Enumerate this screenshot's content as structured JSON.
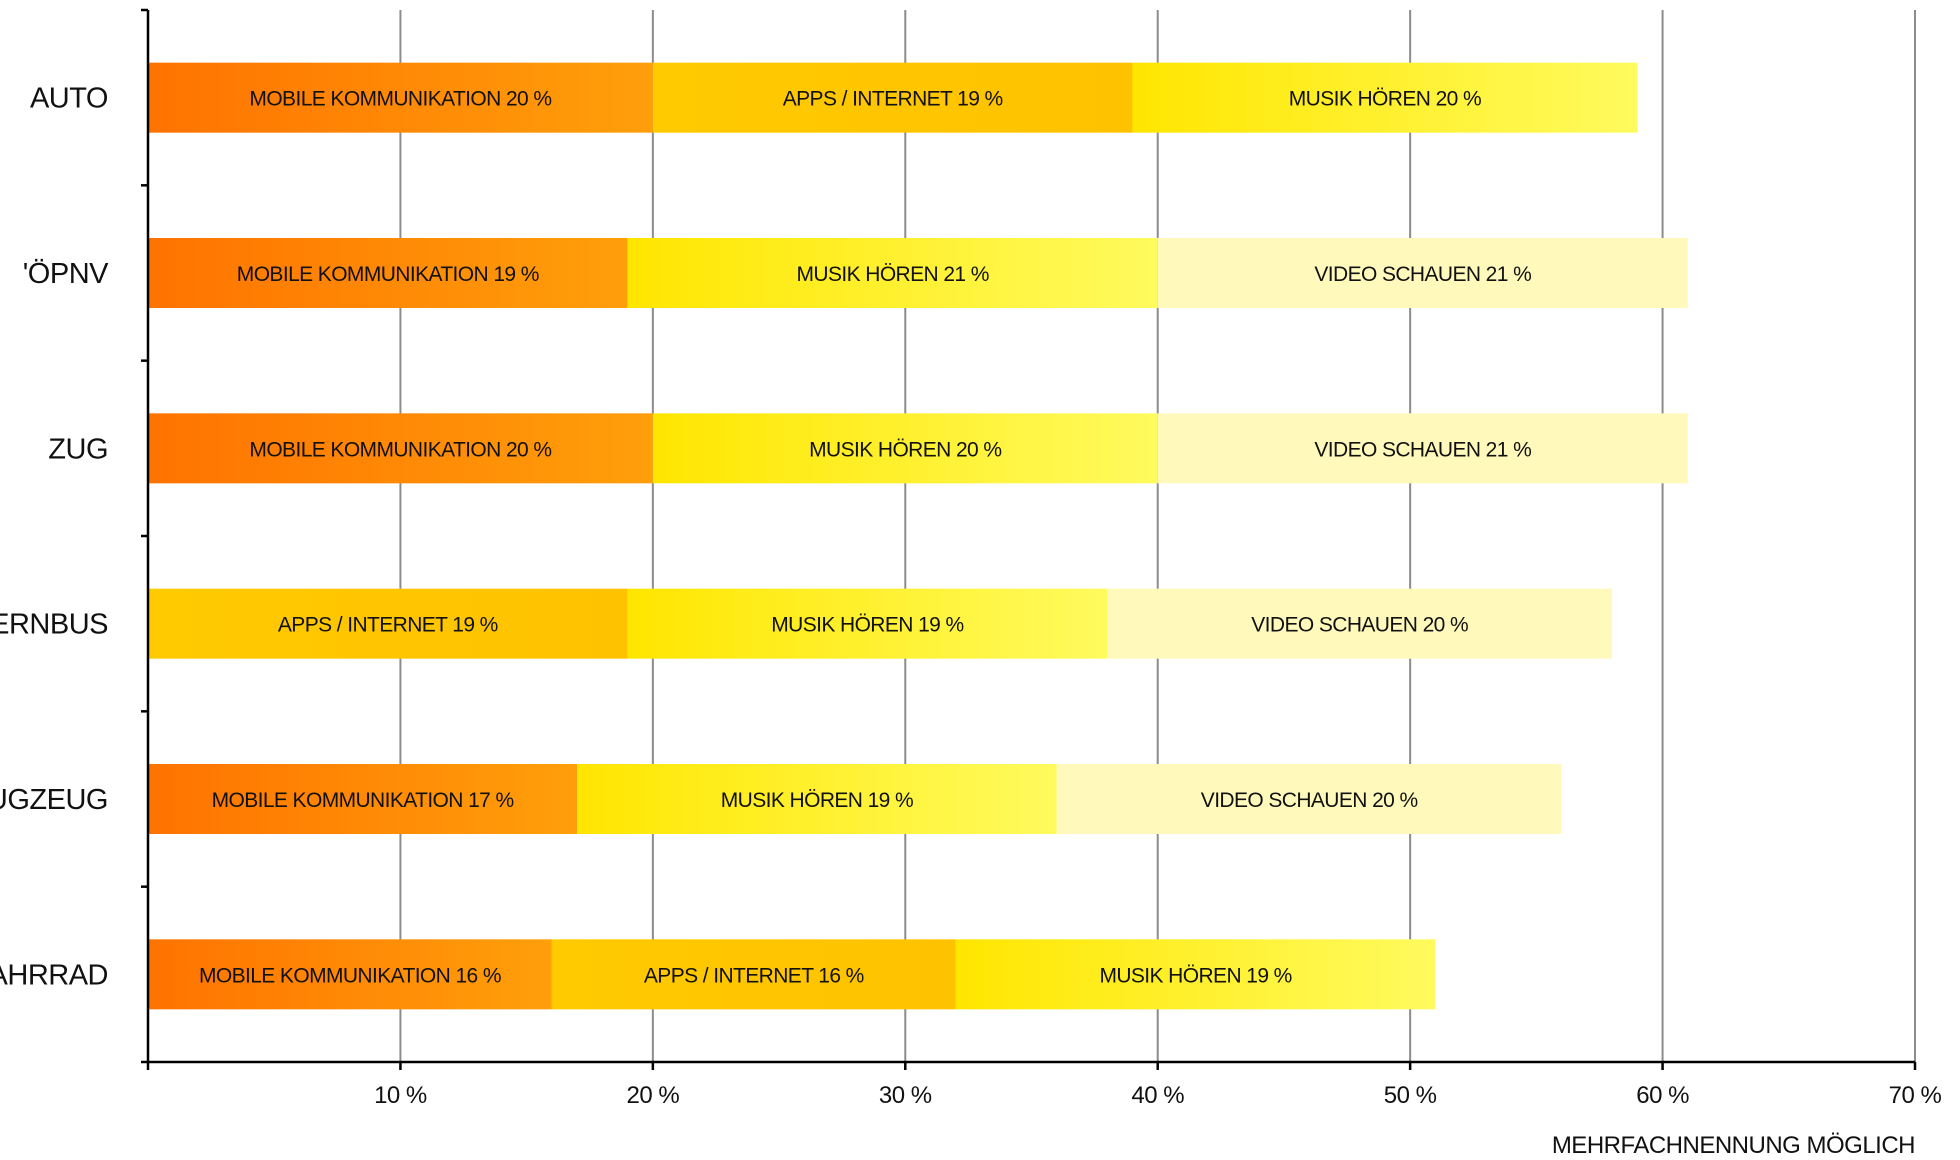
{
  "chart_data": {
    "type": "bar",
    "orientation": "horizontal",
    "stacked": true,
    "categories": [
      "AUTO",
      "'ÖPNV",
      "ZUG",
      "FERNBUS",
      "FLUGZEUG",
      "FAHRRAD"
    ],
    "rows": [
      {
        "category": "AUTO",
        "segments": [
          {
            "name": "Mobile Kommunikation",
            "value": 20,
            "label": "MOBILE KOMMUNIKATION 20 %"
          },
          {
            "name": "Apps / Internet",
            "value": 19,
            "label": "APPS / INTERNET 19 %"
          },
          {
            "name": "Musik hören",
            "value": 20,
            "label": "MUSIK HÖREN 20 %"
          }
        ]
      },
      {
        "category": "'ÖPNV",
        "segments": [
          {
            "name": "Mobile Kommunikation",
            "value": 19,
            "label": "MOBILE KOMMUNIKATION 19 %"
          },
          {
            "name": "Musik hören",
            "value": 21,
            "label": "MUSIK HÖREN 21 %"
          },
          {
            "name": "Video schauen",
            "value": 21,
            "label": "VIDEO SCHAUEN 21 %"
          }
        ]
      },
      {
        "category": "ZUG",
        "segments": [
          {
            "name": "Mobile Kommunikation",
            "value": 20,
            "label": "MOBILE KOMMUNIKATION 20 %"
          },
          {
            "name": "Musik hören",
            "value": 20,
            "label": "MUSIK HÖREN 20 %"
          },
          {
            "name": "Video schauen",
            "value": 21,
            "label": "VIDEO SCHAUEN 21 %"
          }
        ]
      },
      {
        "category": "FERNBUS",
        "segments": [
          {
            "name": "Apps / Internet",
            "value": 19,
            "label": "APPS / INTERNET 19 %"
          },
          {
            "name": "Musik hören",
            "value": 19,
            "label": "MUSIK HÖREN 19 %"
          },
          {
            "name": "Video schauen",
            "value": 20,
            "label": "VIDEO SCHAUEN 20 %"
          }
        ]
      },
      {
        "category": "FLUGZEUG",
        "segments": [
          {
            "name": "Mobile Kommunikation",
            "value": 17,
            "label": "MOBILE KOMMUNIKATION 17 %"
          },
          {
            "name": "Musik hören",
            "value": 19,
            "label": "MUSIK HÖREN 19 %"
          },
          {
            "name": "Video schauen",
            "value": 20,
            "label": "VIDEO SCHAUEN 20 %"
          }
        ]
      },
      {
        "category": "FAHRRAD",
        "segments": [
          {
            "name": "Mobile Kommunikation",
            "value": 16,
            "label": "MOBILE KOMMUNIKATION 16 %"
          },
          {
            "name": "Apps / Internet",
            "value": 16,
            "label": "APPS / INTERNET 16 %"
          },
          {
            "name": "Musik hören",
            "value": 19,
            "label": "MUSIK HÖREN 19 %"
          }
        ]
      }
    ],
    "series_colors": {
      "Mobile Kommunikation": [
        "#ff7300",
        "#ff9f0a"
      ],
      "Apps / Internet": [
        "#ffca00",
        "#ffc200"
      ],
      "Musik hören": [
        "#ffe600",
        "#fffb5e"
      ],
      "Video schauen": [
        "#fff9bc",
        "#fff9bc"
      ]
    },
    "xlim": [
      0,
      70
    ],
    "xticks": [
      10,
      20,
      30,
      40,
      50,
      60,
      70
    ],
    "xtick_labels": [
      "10 %",
      "20 %",
      "30 %",
      "40 %",
      "50 %",
      "60 %",
      "70 %"
    ],
    "grid": true,
    "legend": "none",
    "footnote": "MEHRFACHNENNUNG MÖGLICH"
  }
}
